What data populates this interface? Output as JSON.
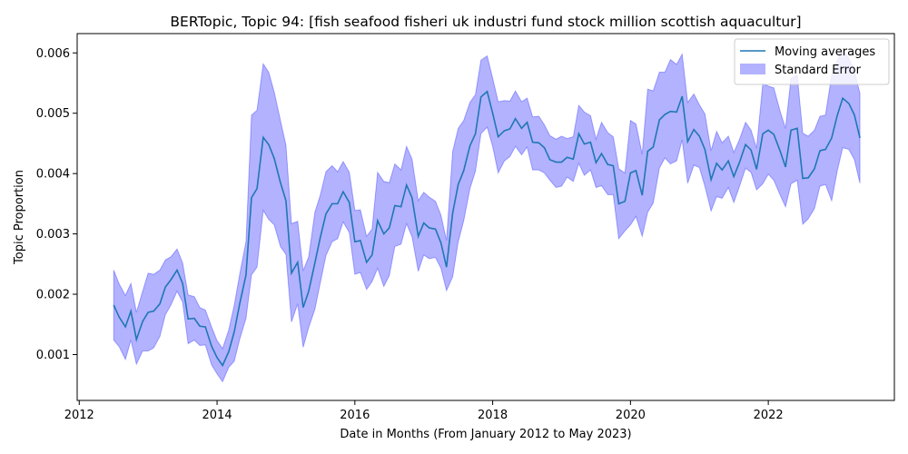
{
  "chart_data": {
    "type": "line",
    "title": "BERTopic, Topic 94: [fish seafood fisheri uk industri fund stock million scottish aquacultur]",
    "xlabel": "Date in Months (From January 2012 to May 2023)",
    "ylabel": "Topic Proportion",
    "xlim": [
      2011.97,
      2023.83
    ],
    "ylim": [
      0.00024,
      0.00632
    ],
    "xticks": [
      2012,
      2014,
      2016,
      2018,
      2020,
      2022
    ],
    "xtick_labels": [
      "2012",
      "2014",
      "2016",
      "2018",
      "2020",
      "2022"
    ],
    "yticks": [
      0.001,
      0.002,
      0.003,
      0.004,
      0.005,
      0.006
    ],
    "ytick_labels": [
      "0.001",
      "0.002",
      "0.003",
      "0.004",
      "0.005",
      "0.006"
    ],
    "grid": false,
    "legend": {
      "position": "top-right",
      "entries": [
        "Moving averages",
        "Standard Error"
      ]
    },
    "colors": {
      "line": "#1f77b4",
      "band": "#0000ff",
      "band_opacity": 0.3
    },
    "series": [
      {
        "name": "Moving averages",
        "x": [
          2012.5,
          2012.58,
          2012.67,
          2012.75,
          2012.83,
          2012.92,
          2013.0,
          2013.08,
          2013.17,
          2013.25,
          2013.33,
          2013.42,
          2013.5,
          2013.58,
          2013.67,
          2013.75,
          2013.83,
          2013.92,
          2014.0,
          2014.08,
          2014.17,
          2014.25,
          2014.33,
          2014.42,
          2014.5,
          2014.58,
          2014.67,
          2014.75,
          2014.83,
          2014.92,
          2015.0,
          2015.08,
          2015.17,
          2015.25,
          2015.33,
          2015.42,
          2015.5,
          2015.58,
          2015.67,
          2015.75,
          2015.83,
          2015.92,
          2016.0,
          2016.08,
          2016.17,
          2016.25,
          2016.33,
          2016.42,
          2016.5,
          2016.58,
          2016.67,
          2016.75,
          2016.83,
          2016.92,
          2017.0,
          2017.08,
          2017.17,
          2017.25,
          2017.33,
          2017.42,
          2017.5,
          2017.58,
          2017.67,
          2017.75,
          2017.83,
          2017.92,
          2018.0,
          2018.08,
          2018.17,
          2018.25,
          2018.33,
          2018.42,
          2018.5,
          2018.58,
          2018.67,
          2018.75,
          2018.83,
          2018.92,
          2019.0,
          2019.08,
          2019.17,
          2019.25,
          2019.33,
          2019.42,
          2019.5,
          2019.58,
          2019.67,
          2019.75,
          2019.83,
          2019.92,
          2020.0,
          2020.08,
          2020.17,
          2020.25,
          2020.33,
          2020.42,
          2020.5,
          2020.58,
          2020.67,
          2020.75,
          2020.83,
          2020.92,
          2021.0,
          2021.08,
          2021.17,
          2021.25,
          2021.33,
          2021.42,
          2021.5,
          2021.58,
          2021.67,
          2021.75,
          2021.83,
          2021.92,
          2022.0,
          2022.08,
          2022.17,
          2022.25,
          2022.33,
          2022.42,
          2022.5,
          2022.58,
          2022.67,
          2022.75,
          2022.83,
          2022.92,
          2023.0,
          2023.08,
          2023.17,
          2023.25,
          2023.33
        ],
        "values": [
          0.00182,
          0.00162,
          0.00146,
          0.00172,
          0.00125,
          0.00155,
          0.0017,
          0.00172,
          0.00184,
          0.00212,
          0.00224,
          0.0024,
          0.00218,
          0.00159,
          0.0016,
          0.00147,
          0.00146,
          0.00114,
          0.00095,
          0.00082,
          0.00105,
          0.00138,
          0.00185,
          0.00232,
          0.0036,
          0.00375,
          0.0046,
          0.00448,
          0.00425,
          0.00385,
          0.00355,
          0.00235,
          0.00253,
          0.00178,
          0.00205,
          0.00252,
          0.00295,
          0.00333,
          0.0035,
          0.0035,
          0.0037,
          0.00352,
          0.00287,
          0.00289,
          0.00253,
          0.00265,
          0.00322,
          0.003,
          0.0031,
          0.00347,
          0.00345,
          0.00381,
          0.0036,
          0.00296,
          0.00318,
          0.0031,
          0.00308,
          0.00285,
          0.00245,
          0.00335,
          0.00382,
          0.00405,
          0.00446,
          0.00466,
          0.00527,
          0.00536,
          0.005,
          0.00461,
          0.00471,
          0.00474,
          0.00491,
          0.00475,
          0.00485,
          0.00452,
          0.00451,
          0.00443,
          0.00423,
          0.00419,
          0.00419,
          0.00427,
          0.00424,
          0.00466,
          0.00449,
          0.00452,
          0.00418,
          0.00433,
          0.00415,
          0.00413,
          0.0035,
          0.00354,
          0.00401,
          0.00405,
          0.00364,
          0.00437,
          0.00444,
          0.00489,
          0.00498,
          0.00503,
          0.00502,
          0.00528,
          0.00453,
          0.00473,
          0.00462,
          0.0044,
          0.0039,
          0.00417,
          0.00406,
          0.00421,
          0.00395,
          0.00418,
          0.00448,
          0.00439,
          0.00407,
          0.00466,
          0.00472,
          0.00465,
          0.00438,
          0.00411,
          0.00472,
          0.00475,
          0.00392,
          0.00393,
          0.00408,
          0.00438,
          0.0044,
          0.00459,
          0.00496,
          0.00525,
          0.00516,
          0.00497,
          0.00459
        ]
      }
    ],
    "error_band": {
      "name": "Standard Error",
      "upper": [
        0.0024,
        0.00217,
        0.00198,
        0.00218,
        0.0017,
        0.00205,
        0.00235,
        0.00233,
        0.0024,
        0.00257,
        0.00262,
        0.00275,
        0.00252,
        0.00199,
        0.00196,
        0.00178,
        0.00174,
        0.00146,
        0.00123,
        0.0011,
        0.00141,
        0.00182,
        0.00234,
        0.00287,
        0.00497,
        0.00505,
        0.00582,
        0.00568,
        0.00535,
        0.00488,
        0.00447,
        0.00317,
        0.00321,
        0.00239,
        0.00262,
        0.00336,
        0.00365,
        0.00403,
        0.00413,
        0.00403,
        0.0042,
        0.00402,
        0.00339,
        0.0034,
        0.00296,
        0.00308,
        0.00402,
        0.00387,
        0.00385,
        0.00416,
        0.00406,
        0.00445,
        0.00424,
        0.00355,
        0.00369,
        0.00361,
        0.00354,
        0.00331,
        0.00289,
        0.00437,
        0.00475,
        0.00488,
        0.00518,
        0.00531,
        0.00588,
        0.00595,
        0.00558,
        0.00519,
        0.00521,
        0.0052,
        0.00537,
        0.00519,
        0.00525,
        0.00494,
        0.00495,
        0.00481,
        0.00463,
        0.00457,
        0.00462,
        0.00458,
        0.00461,
        0.00513,
        0.00502,
        0.00496,
        0.00457,
        0.00485,
        0.00468,
        0.00461,
        0.00408,
        0.00401,
        0.00488,
        0.00482,
        0.00432,
        0.0054,
        0.00537,
        0.00568,
        0.00568,
        0.00589,
        0.00581,
        0.00598,
        0.00518,
        0.00532,
        0.00514,
        0.00499,
        0.00438,
        0.0047,
        0.00451,
        0.00462,
        0.00435,
        0.00456,
        0.00485,
        0.00472,
        0.00442,
        0.00549,
        0.00545,
        0.00542,
        0.00504,
        0.00475,
        0.00558,
        0.00563,
        0.00467,
        0.00462,
        0.00472,
        0.00495,
        0.00497,
        0.00563,
        0.00587,
        0.00605,
        0.00591,
        0.00569,
        0.00533
      ],
      "lower": [
        0.00124,
        0.00113,
        0.00092,
        0.00124,
        0.00084,
        0.00106,
        0.00106,
        0.00111,
        0.0013,
        0.00166,
        0.00182,
        0.00205,
        0.00187,
        0.00118,
        0.00124,
        0.00115,
        0.00116,
        0.00083,
        0.00068,
        0.00055,
        0.00079,
        0.00089,
        0.00126,
        0.0016,
        0.00232,
        0.00245,
        0.00339,
        0.00324,
        0.00315,
        0.00279,
        0.00266,
        0.00154,
        0.00184,
        0.00112,
        0.00145,
        0.00175,
        0.0022,
        0.00264,
        0.00287,
        0.00292,
        0.0032,
        0.00302,
        0.00233,
        0.00236,
        0.00208,
        0.00221,
        0.00243,
        0.00213,
        0.00231,
        0.00279,
        0.00283,
        0.00317,
        0.00295,
        0.00238,
        0.00265,
        0.00259,
        0.00261,
        0.00243,
        0.00206,
        0.00229,
        0.00287,
        0.00322,
        0.00375,
        0.00404,
        0.00466,
        0.00477,
        0.00445,
        0.00401,
        0.00421,
        0.00428,
        0.00445,
        0.00431,
        0.00444,
        0.00406,
        0.00406,
        0.00401,
        0.00389,
        0.00377,
        0.00379,
        0.00394,
        0.00387,
        0.00417,
        0.00397,
        0.00406,
        0.00377,
        0.0038,
        0.00365,
        0.00365,
        0.00292,
        0.00305,
        0.00315,
        0.00329,
        0.00296,
        0.00336,
        0.00351,
        0.00409,
        0.00426,
        0.00416,
        0.00421,
        0.00456,
        0.00384,
        0.00414,
        0.0041,
        0.00379,
        0.00338,
        0.00362,
        0.00359,
        0.00377,
        0.00352,
        0.00378,
        0.00409,
        0.00402,
        0.00373,
        0.00383,
        0.00399,
        0.00389,
        0.00365,
        0.00345,
        0.00383,
        0.00389,
        0.00316,
        0.00325,
        0.00342,
        0.00379,
        0.00382,
        0.00355,
        0.00404,
        0.00443,
        0.0044,
        0.00423,
        0.00384
      ]
    }
  }
}
